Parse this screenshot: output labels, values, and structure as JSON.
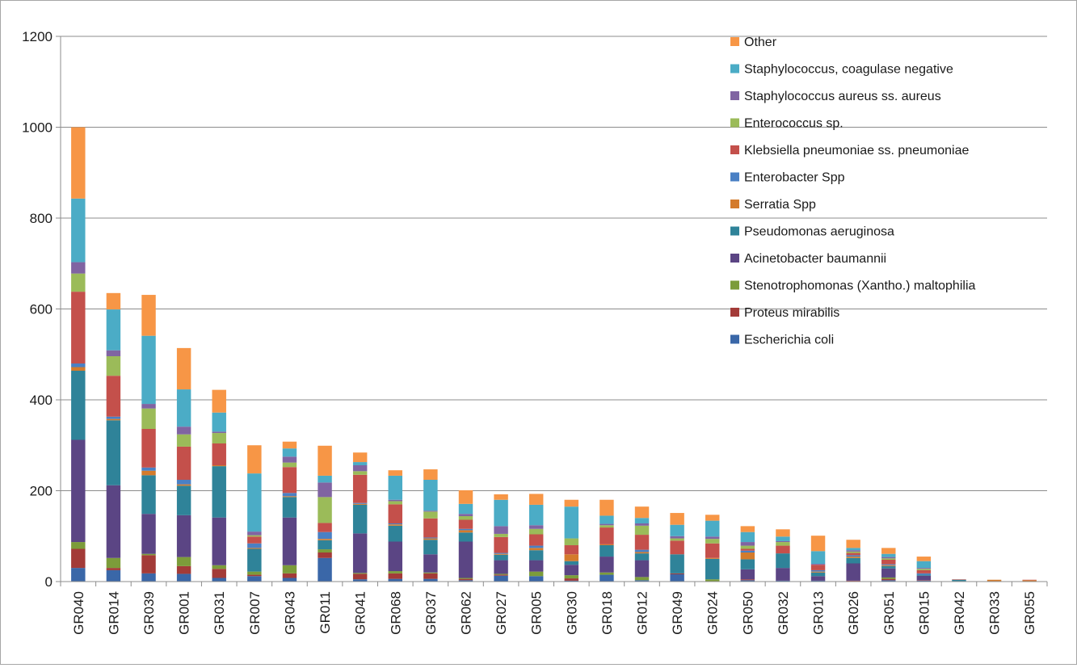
{
  "chart_data": {
    "type": "bar",
    "stacked": true,
    "title": "",
    "xlabel": "",
    "ylabel": "",
    "ylim": [
      0,
      1200
    ],
    "yticks": [
      0,
      200,
      400,
      600,
      800,
      1000,
      1200
    ],
    "grid": true,
    "legend_position": "top-right",
    "categories": [
      "GR040",
      "GR014",
      "GR039",
      "GR001",
      "GR031",
      "GR007",
      "GR043",
      "GR011",
      "GR041",
      "GR068",
      "GR037",
      "GR062",
      "GR027",
      "GR005",
      "GR030",
      "GR018",
      "GR012",
      "GR049",
      "GR024",
      "GR050",
      "GR032",
      "GR013",
      "GR026",
      "GR051",
      "GR015",
      "GR042",
      "GR033",
      "GR055"
    ],
    "series": [
      {
        "name": "Escherichia coli",
        "color": "#3a67a8",
        "values": [
          30,
          25,
          18,
          17,
          8,
          12,
          8,
          52,
          5,
          6,
          6,
          3,
          13,
          12,
          2,
          15,
          3,
          16,
          0,
          3,
          2,
          2,
          1,
          3,
          2,
          1,
          1,
          0
        ]
      },
      {
        "name": "Proteus mirabilis",
        "color": "#a33b38",
        "values": [
          42,
          5,
          40,
          17,
          20,
          3,
          10,
          12,
          12,
          12,
          12,
          3,
          2,
          0,
          5,
          0,
          0,
          2,
          0,
          2,
          0,
          0,
          1,
          3,
          1,
          0,
          0,
          0
        ]
      },
      {
        "name": "Stenotrophomonas (Xantho.) maltophilia",
        "color": "#7c9c3a",
        "values": [
          15,
          22,
          3,
          20,
          8,
          7,
          18,
          7,
          2,
          5,
          2,
          2,
          2,
          10,
          7,
          5,
          7,
          0,
          5,
          0,
          0,
          0,
          0,
          3,
          0,
          0,
          0,
          0
        ]
      },
      {
        "name": "Acinetobacter baumannii",
        "color": "#5b4584",
        "values": [
          225,
          160,
          88,
          92,
          105,
          0,
          105,
          0,
          87,
          65,
          40,
          80,
          30,
          25,
          23,
          35,
          37,
          0,
          0,
          22,
          28,
          10,
          38,
          20,
          10,
          0,
          0,
          0
        ]
      },
      {
        "name": "Pseudomonas aeruginosa",
        "color": "#2f8399",
        "values": [
          152,
          143,
          85,
          65,
          113,
          50,
          45,
          20,
          63,
          35,
          32,
          20,
          12,
          22,
          8,
          25,
          15,
          42,
          45,
          22,
          32,
          8,
          12,
          5,
          2,
          3,
          0,
          0
        ]
      },
      {
        "name": "Serratia Spp",
        "color": "#d47b2c",
        "values": [
          8,
          3,
          10,
          3,
          2,
          2,
          2,
          3,
          2,
          3,
          3,
          5,
          2,
          5,
          15,
          2,
          3,
          0,
          2,
          15,
          0,
          2,
          3,
          2,
          0,
          0,
          3,
          3
        ]
      },
      {
        "name": "Enterobacter Spp",
        "color": "#4a80c4",
        "values": [
          8,
          5,
          7,
          10,
          0,
          10,
          7,
          15,
          2,
          2,
          2,
          3,
          2,
          5,
          0,
          0,
          5,
          0,
          0,
          4,
          0,
          3,
          3,
          2,
          3,
          0,
          0,
          0
        ]
      },
      {
        "name": "Klebsiella pneumoniae ss. pneumoniae",
        "color": "#c4504b",
        "values": [
          158,
          90,
          85,
          73,
          48,
          15,
          57,
          20,
          62,
          42,
          42,
          20,
          35,
          25,
          20,
          37,
          33,
          30,
          32,
          4,
          17,
          12,
          5,
          10,
          7,
          1,
          0,
          1
        ]
      },
      {
        "name": "Enterococcus sp.",
        "color": "#9bbb59",
        "values": [
          40,
          43,
          45,
          27,
          23,
          3,
          10,
          57,
          8,
          7,
          15,
          8,
          7,
          12,
          15,
          5,
          20,
          5,
          10,
          7,
          8,
          0,
          3,
          3,
          3,
          0,
          0,
          0
        ]
      },
      {
        "name": "Staphylococcus aureus ss. aureus",
        "color": "#8064a2",
        "values": [
          25,
          13,
          10,
          17,
          3,
          8,
          13,
          32,
          13,
          3,
          2,
          5,
          17,
          8,
          0,
          3,
          5,
          5,
          5,
          8,
          2,
          2,
          3,
          3,
          2,
          0,
          0,
          0
        ]
      },
      {
        "name": "Staphylococcus, coagulase negative",
        "color": "#4bacc6",
        "values": [
          140,
          90,
          150,
          82,
          42,
          128,
          18,
          15,
          7,
          53,
          68,
          22,
          58,
          45,
          70,
          18,
          12,
          25,
          35,
          22,
          10,
          28,
          5,
          7,
          15,
          0,
          0,
          0
        ]
      },
      {
        "name": "Other",
        "color": "#f79646",
        "values": [
          157,
          36,
          90,
          91,
          50,
          62,
          15,
          66,
          21,
          12,
          23,
          30,
          12,
          24,
          15,
          35,
          25,
          26,
          13,
          13,
          16,
          34,
          18,
          13,
          10,
          0,
          0,
          0
        ]
      }
    ]
  }
}
